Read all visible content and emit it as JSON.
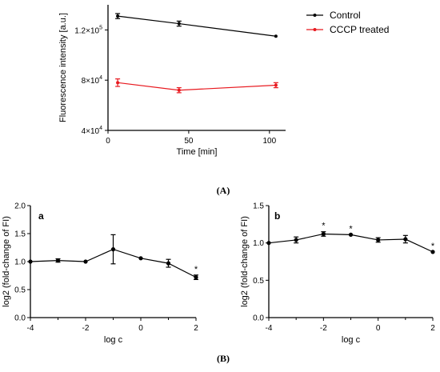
{
  "figure": {
    "caption_a": "(A)",
    "caption_b": "(B)"
  },
  "chart_data": [
    {
      "type": "line",
      "panel": "A",
      "title": "",
      "xlabel": "Time [min]",
      "ylabel": "Fluorescence intensity [a.u.]",
      "xlim": [
        0,
        110
      ],
      "ylim": [
        40000,
        140000
      ],
      "xticks": [
        0,
        50,
        100
      ],
      "xtick_labels": [
        "0",
        "50",
        "100"
      ],
      "yticks": [
        40000,
        80000,
        120000
      ],
      "ytick_labels": [
        {
          "mant": "4×10",
          "exp": "4"
        },
        {
          "mant": "8×10",
          "exp": "4"
        },
        {
          "mant": "1.2×10",
          "exp": "5"
        }
      ],
      "x": [
        6,
        44,
        104
      ],
      "series": [
        {
          "name": "Control",
          "color": "#000000",
          "values": [
            131000,
            125000,
            115000
          ],
          "errors": [
            2000,
            2000,
            0
          ]
        },
        {
          "name": "CCCP treated",
          "color": "#e8191f",
          "values": [
            78000,
            72000,
            76000
          ],
          "errors": [
            3000,
            2000,
            2000
          ]
        }
      ],
      "legend": "top-right",
      "grid": false
    },
    {
      "type": "line",
      "panel": "B",
      "label": "a",
      "title": "",
      "xlabel": "log c",
      "ylabel": "log2 (fold-change of FI)",
      "xlim": [
        -4,
        2
      ],
      "ylim": [
        0,
        2
      ],
      "xticks": [
        -4,
        -2,
        0,
        2
      ],
      "xtick_labels": [
        "-4",
        "-2",
        "0",
        "2"
      ],
      "yticks": [
        0,
        0.5,
        1.0,
        1.5,
        2.0
      ],
      "ytick_labels": [
        "0.0",
        "0.5",
        "1.0",
        "1.5",
        "2.0"
      ],
      "x": [
        -4,
        -3,
        -2,
        -1,
        0,
        1,
        2
      ],
      "series": [
        {
          "color": "#000000",
          "values": [
            1.0,
            1.02,
            1.0,
            1.22,
            1.06,
            0.97,
            0.72
          ],
          "errors": [
            0,
            0.03,
            0,
            0.26,
            0,
            0.07,
            0.04
          ]
        }
      ],
      "annotations": [
        {
          "x": 2,
          "text": "*"
        }
      ],
      "grid": false
    },
    {
      "type": "line",
      "panel": "B",
      "label": "b",
      "title": "",
      "xlabel": "log c",
      "ylabel": "log2 (fold-change of FI)",
      "xlim": [
        -4,
        2
      ],
      "ylim": [
        0,
        1.5
      ],
      "xticks": [
        -4,
        -2,
        0,
        2
      ],
      "xtick_labels": [
        "-4",
        "-2",
        "0",
        "2"
      ],
      "yticks": [
        0,
        0.5,
        1.0,
        1.5
      ],
      "ytick_labels": [
        "0.0",
        "0.5",
        "1.0",
        "1.5"
      ],
      "x": [
        -4,
        -3,
        -2,
        -1,
        0,
        1,
        2
      ],
      "series": [
        {
          "color": "#000000",
          "values": [
            1.0,
            1.04,
            1.12,
            1.11,
            1.04,
            1.05,
            0.88
          ],
          "errors": [
            0,
            0.04,
            0.03,
            0,
            0.03,
            0.05,
            0
          ]
        }
      ],
      "annotations": [
        {
          "x": -2,
          "text": "*"
        },
        {
          "x": -1,
          "text": "*"
        },
        {
          "x": 2,
          "text": "*"
        }
      ],
      "grid": false
    }
  ]
}
